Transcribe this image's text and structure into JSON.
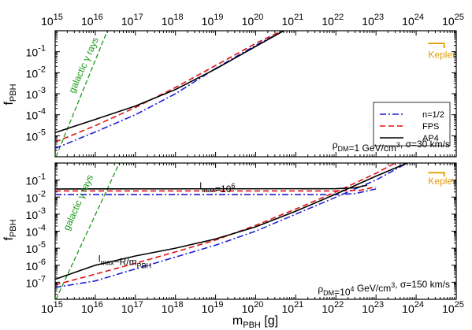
{
  "chart_data": {
    "type": "line",
    "xscale": "log",
    "yscale": "log",
    "xlim": [
      1000000000000000.0,
      1e+25
    ],
    "xlabel": {
      "main": "m",
      "sub": "PBH",
      "tail": " [g]"
    },
    "x_tick_labels": [
      {
        "base": "10",
        "exp": "15"
      },
      {
        "base": "10",
        "exp": "16"
      },
      {
        "base": "10",
        "exp": "17"
      },
      {
        "base": "10",
        "exp": "18"
      },
      {
        "base": "10",
        "exp": "19"
      },
      {
        "base": "10",
        "exp": "20"
      },
      {
        "base": "10",
        "exp": "21"
      },
      {
        "base": "10",
        "exp": "22"
      },
      {
        "base": "10",
        "exp": "23"
      },
      {
        "base": "10",
        "exp": "24"
      },
      {
        "base": "10",
        "exp": "25"
      }
    ],
    "legend": {
      "placement": "right, top panel",
      "entries": [
        {
          "label": "n=1/2",
          "color": "#1f1fd6",
          "dash": "dash-dot"
        },
        {
          "label": "FPS",
          "color": "#e01010",
          "dash": "dashed"
        },
        {
          "label": "AP4",
          "color": "#000000",
          "dash": "solid"
        }
      ]
    },
    "panels": [
      {
        "ylabel": {
          "main": "f",
          "sub": "PBH"
        },
        "ylim": [
          1e-06,
          1
        ],
        "y_tick_labels": [
          {
            "base": "10",
            "exp": "-5",
            "value": 1e-05
          },
          {
            "base": "10",
            "exp": "-4",
            "value": 0.0001
          },
          {
            "base": "10",
            "exp": "-3",
            "value": 0.001
          },
          {
            "base": "10",
            "exp": "-2",
            "value": 0.01
          },
          {
            "base": "10",
            "exp": "-1",
            "value": 0.1
          }
        ],
        "condition": {
          "parts": [
            {
              "t": "ρ"
            },
            {
              "t": "DM",
              "s": "sub"
            },
            {
              "t": "=1 GeV/cm"
            },
            {
              "t": "3",
              "s": "sup"
            },
            {
              "t": ", σ=30 km/s"
            }
          ]
        },
        "annotations": [
          {
            "text": "galactic γ rays",
            "color": "#1a9a1a",
            "x": 3000000000000000.0,
            "y": 0.001
          },
          {
            "text": "Kepler",
            "color": "#e39a00",
            "x": 2e+24,
            "y": 0.05
          }
        ],
        "series": [
          {
            "name": "n=1/2",
            "points": [
              [
                1000000000000000.0,
                2.5e-06
              ],
              [
                1e+16,
                1.5e-05
              ],
              [
                1e+17,
                0.0001
              ],
              [
                1e+18,
                0.001
              ],
              [
                1e+19,
                0.016
              ],
              [
                1e+20,
                0.2
              ],
              [
                5e+20,
                1
              ]
            ]
          },
          {
            "name": "FPS",
            "points": [
              [
                1000000000000000.0,
                5e-06
              ],
              [
                1e+16,
                3e-05
              ],
              [
                1e+17,
                0.00022
              ],
              [
                1e+18,
                0.002
              ],
              [
                1e+19,
                0.022
              ],
              [
                1e+20,
                0.25
              ],
              [
                4.5e+20,
                1
              ]
            ]
          },
          {
            "name": "AP4",
            "points": [
              [
                1000000000000000.0,
                1.4e-05
              ],
              [
                1e+16,
                6e-05
              ],
              [
                1e+17,
                0.00026
              ],
              [
                1e+18,
                0.0016
              ],
              [
                1e+19,
                0.015
              ],
              [
                1e+20,
                0.18
              ],
              [
                5e+20,
                1
              ]
            ]
          }
        ],
        "bounds": [
          {
            "name": "galactic γ rays",
            "color": "#1a9a1a",
            "points": [
              [
                1050000000000000.0,
                1e-06
              ],
              [
                2e+16,
                1
              ]
            ]
          },
          {
            "name": "Kepler",
            "color": "#e39a00",
            "points": [
              [
                2e+24,
                0.25
              ],
              [
                5e+24,
                0.25
              ],
              [
                5e+24,
                0.15
              ]
            ]
          }
        ]
      },
      {
        "ylabel": {
          "main": "f",
          "sub": "PBH"
        },
        "ylim": [
          1e-08,
          1
        ],
        "y_tick_labels": [
          {
            "base": "10",
            "exp": "-7",
            "value": 1e-07
          },
          {
            "base": "10",
            "exp": "-6",
            "value": 1e-06
          },
          {
            "base": "10",
            "exp": "-5",
            "value": 1e-05
          },
          {
            "base": "10",
            "exp": "-4",
            "value": 0.0001
          },
          {
            "base": "10",
            "exp": "-3",
            "value": 0.001
          },
          {
            "base": "10",
            "exp": "-2",
            "value": 0.01
          },
          {
            "base": "10",
            "exp": "-1",
            "value": 0.1
          }
        ],
        "condition": {
          "parts": [
            {
              "t": "ρ"
            },
            {
              "t": "DM",
              "s": "sub"
            },
            {
              "t": "=10"
            },
            {
              "t": "4",
              "s": "sup"
            },
            {
              "t": " GeV/cm"
            },
            {
              "t": "3",
              "s": "sup"
            },
            {
              "t": ", σ=150 km/s"
            }
          ]
        },
        "annotations": [
          {
            "text": "galactic γ rays",
            "color": "#1a9a1a",
            "x": 2200000000000000.0,
            "y": 0.0001
          },
          {
            "text": "Kepler",
            "color": "#e39a00",
            "x": 2e+24,
            "y": 0.055
          }
        ],
        "labels": [
          {
            "parts": [
              {
                "t": "l"
              },
              {
                "t": "max",
                "s": "sub"
              },
              {
                "t": "=10"
              },
              {
                "t": "6",
                "s": "sup"
              }
            ],
            "x": 4e+18,
            "y": 0.03
          },
          {
            "parts": [
              {
                "t": "l"
              },
              {
                "t": "max",
                "s": "sub"
              },
              {
                "t": "~R/m"
              },
              {
                "t": "PBH",
                "s": "sub"
              }
            ],
            "x": 1.2e+16,
            "y": 1.6e-06
          }
        ],
        "series": [
          {
            "name": "n=1/2",
            "points": [
              [
                1000000000000000.0,
                5e-08
              ],
              [
                1e+16,
                1.2e-07
              ],
              [
                1e+17,
                6e-07
              ],
              [
                1e+18,
                3e-06
              ],
              [
                1e+19,
                1.5e-05
              ],
              [
                1e+20,
                0.0001
              ],
              [
                1e+21,
                0.001
              ],
              [
                1e+22,
                0.01
              ],
              [
                1e+23,
                0.1
              ],
              [
                6e+23,
                1
              ]
            ]
          },
          {
            "name": "n=1/2",
            "points": [
              [
                1000000000000000.0,
                0.014
              ],
              [
                1e+22,
                0.014
              ],
              [
                3e+22,
                0.016
              ],
              [
                1e+23,
                0.03
              ]
            ]
          },
          {
            "name": "FPS",
            "points": [
              [
                1000000000000000.0,
                7e-08
              ],
              [
                1e+16,
                3e-07
              ],
              [
                1e+17,
                1.3e-06
              ],
              [
                1e+18,
                6e-06
              ],
              [
                1e+19,
                3e-05
              ],
              [
                1e+20,
                0.00022
              ],
              [
                1e+21,
                0.002
              ],
              [
                1e+22,
                0.02
              ],
              [
                1e+23,
                0.25
              ],
              [
                3e+23,
                1
              ]
            ]
          },
          {
            "name": "FPS",
            "points": [
              [
                1000000000000000.0,
                0.023
              ],
              [
                1e+22,
                0.023
              ],
              [
                4e+22,
                0.025
              ],
              [
                1e+23,
                0.04
              ]
            ]
          },
          {
            "name": "AP4",
            "points": [
              [
                1000000000000000.0,
                1.5e-07
              ],
              [
                1e+16,
                1e-06
              ],
              [
                1e+17,
                3.5e-06
              ],
              [
                1e+18,
                1e-05
              ],
              [
                1e+19,
                3.5e-05
              ],
              [
                1e+20,
                0.00018
              ],
              [
                1e+21,
                0.0015
              ],
              [
                1e+22,
                0.015
              ],
              [
                1e+23,
                0.17
              ],
              [
                6e+23,
                1
              ]
            ]
          },
          {
            "name": "AP4",
            "points": [
              [
                1000000000000000.0,
                0.03
              ],
              [
                1e+22,
                0.031
              ],
              [
                3e+22,
                0.035
              ],
              [
                6e+22,
                0.05
              ]
            ]
          }
        ],
        "bounds": [
          {
            "name": "galactic γ rays",
            "color": "#1a9a1a",
            "points": [
              [
                1050000000000000.0,
                1e-08
              ],
              [
                4e+16,
                1
              ]
            ]
          },
          {
            "name": "Kepler",
            "color": "#e39a00",
            "points": [
              [
                2e+24,
                0.27
              ],
              [
                5e+24,
                0.27
              ],
              [
                5e+24,
                0.16
              ]
            ]
          }
        ]
      }
    ]
  }
}
